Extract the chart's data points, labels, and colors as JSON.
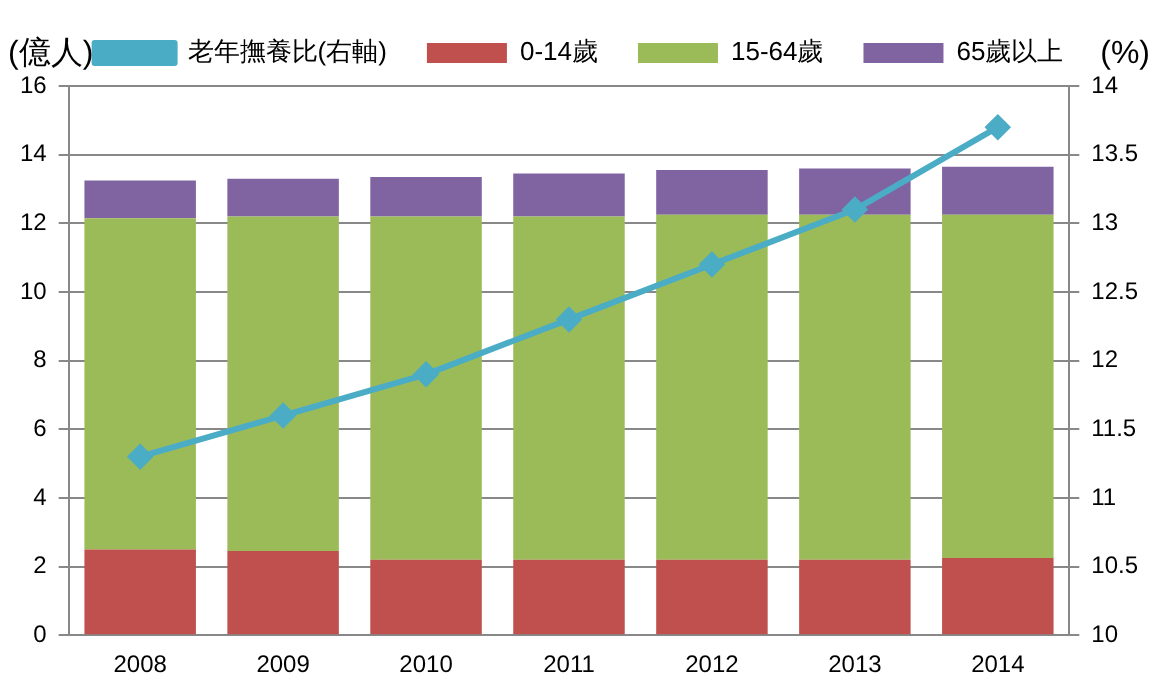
{
  "chart_data": {
    "type": "bar",
    "stacked": true,
    "ylabel": "(億人)",
    "y2label": "(%)",
    "categories": [
      "2008",
      "2009",
      "2010",
      "2011",
      "2012",
      "2013",
      "2014"
    ],
    "series": [
      {
        "name": "0-14歲",
        "color": "#c0504d",
        "values": [
          2.5,
          2.45,
          2.2,
          2.2,
          2.2,
          2.2,
          2.25
        ]
      },
      {
        "name": "15-64歲",
        "color": "#9bbb59",
        "values": [
          9.65,
          9.75,
          10.0,
          10.0,
          10.05,
          10.05,
          10.0
        ]
      },
      {
        "name": "65歲以上",
        "color": "#8064a2",
        "values": [
          1.1,
          1.1,
          1.15,
          1.25,
          1.3,
          1.35,
          1.4
        ]
      },
      {
        "name": "老年撫養比(右軸)",
        "type": "line",
        "axis": "y2",
        "color": "#4bacc6",
        "values": [
          11.3,
          11.6,
          11.9,
          12.3,
          12.7,
          13.1,
          13.7
        ]
      }
    ],
    "ylim": [
      0,
      16
    ],
    "yticks": [
      0,
      2,
      4,
      6,
      8,
      10,
      12,
      14,
      16
    ],
    "y2lim": [
      10,
      14
    ],
    "y2ticks": [
      10,
      10.5,
      11,
      11.5,
      12,
      12.5,
      13,
      13.5,
      14
    ],
    "grid": "y",
    "legend": "top",
    "marker": "diamond",
    "line_style": "solid"
  }
}
